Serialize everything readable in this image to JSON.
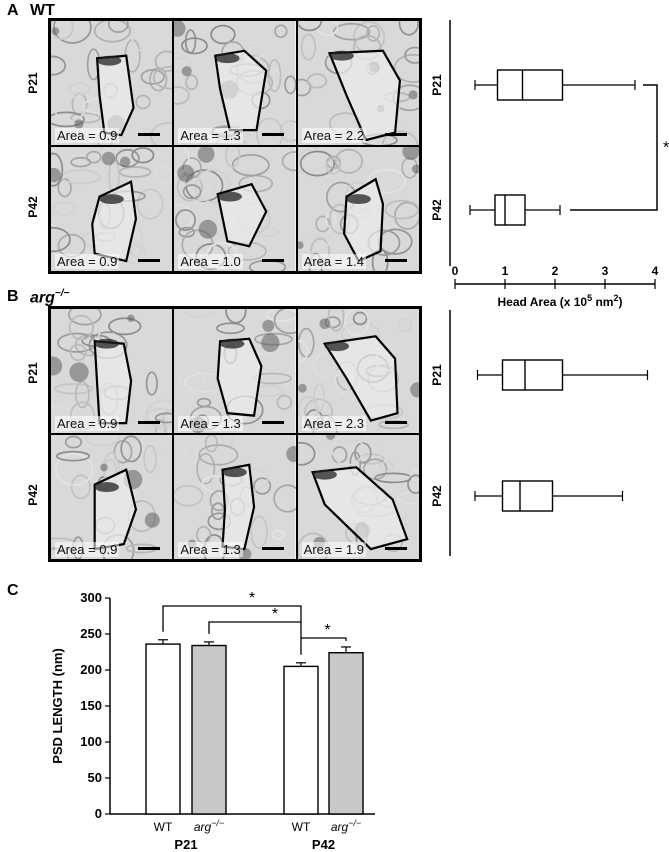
{
  "panels": {
    "A": {
      "letter": "A",
      "condition": "WT"
    },
    "B": {
      "letter": "B",
      "condition_main": "arg",
      "condition_sup": "−/−"
    },
    "C": {
      "letter": "C"
    }
  },
  "micrographs": {
    "row_labels": [
      "P21",
      "P42"
    ],
    "wt_areas": [
      [
        "Area = 0.9",
        "Area = 1.3",
        "Area = 2.2"
      ],
      [
        "Area = 0.9",
        "Area = 1.0",
        "Area = 1.4"
      ]
    ],
    "arg_areas": [
      [
        "Area = 0.9",
        "Area = 1.3",
        "Area = 2.3"
      ],
      [
        "Area = 0.9",
        "Area = 1.3",
        "Area = 1.9"
      ]
    ]
  },
  "chart_data": [
    {
      "type": "boxplot",
      "panel": "A",
      "orientation": "horizontal",
      "xlabel_main": "Head Area (x 10",
      "xlabel_exp": "5",
      "xlabel_unit": " nm",
      "xlabel_unit_exp": "2",
      "xlabel_close": ")",
      "xlim": [
        0,
        4
      ],
      "xticks": [
        "0",
        "1",
        "2",
        "3",
        "4"
      ],
      "categories": [
        "P21",
        "P42"
      ],
      "boxes": [
        {
          "label": "P21",
          "min": 0.4,
          "q1": 0.85,
          "median": 1.35,
          "q3": 2.15,
          "max": 3.6
        },
        {
          "label": "P42",
          "min": 0.3,
          "q1": 0.8,
          "median": 1.0,
          "q3": 1.4,
          "max": 2.1
        }
      ],
      "significance": "*"
    },
    {
      "type": "boxplot",
      "panel": "B",
      "orientation": "horizontal",
      "xlim": [
        0,
        4
      ],
      "categories": [
        "P21",
        "P42"
      ],
      "boxes": [
        {
          "label": "P21",
          "min": 0.45,
          "q1": 0.95,
          "median": 1.4,
          "q3": 2.15,
          "max": 3.85
        },
        {
          "label": "P42",
          "min": 0.4,
          "q1": 0.95,
          "median": 1.3,
          "q3": 1.95,
          "max": 3.35
        }
      ]
    },
    {
      "type": "bar",
      "panel": "C",
      "ylabel": "PSD LENGTH (nm)",
      "ylim": [
        0,
        300
      ],
      "yticks": [
        "0",
        "50",
        "100",
        "150",
        "200",
        "250",
        "300"
      ],
      "groups": [
        "P21",
        "P42"
      ],
      "bar_labels": [
        {
          "main": "WT",
          "sup": ""
        },
        {
          "main": "arg",
          "sup": "−/−"
        },
        {
          "main": "WT",
          "sup": ""
        },
        {
          "main": "arg",
          "sup": "−/−"
        }
      ],
      "series": [
        {
          "genotype": "WT",
          "values": [
            236,
            205
          ],
          "errors": [
            6,
            5
          ],
          "color": "#ffffff"
        },
        {
          "genotype": "arg−/−",
          "values": [
            234,
            224
          ],
          "errors": [
            5,
            8
          ],
          "color": "#c8c8c8"
        }
      ],
      "significance_markers": [
        "*",
        "*",
        "*"
      ]
    }
  ]
}
